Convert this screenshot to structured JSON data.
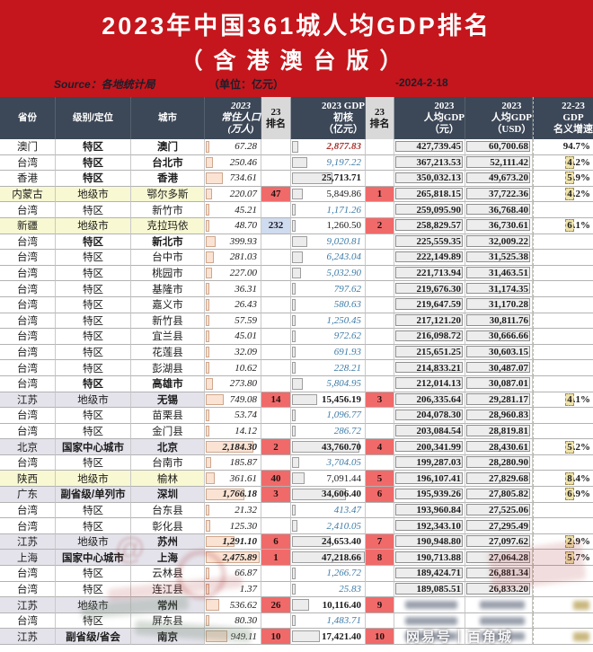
{
  "banner": {
    "title_line1": "2023年中国361城人均GDP排名",
    "title_line2": "（含港澳台版）",
    "source_label": "Source：各地统计局",
    "unit_label": "（单位：亿元）",
    "date_label": "-2024-2-18"
  },
  "watermark": {
    "text": "网易号｜百角城",
    "at_symbol": "@"
  },
  "colors": {
    "banner_red": "#c4161c",
    "header_dark": "#3c4757",
    "rank_red": "#f06a6a",
    "rank_blue": "#cfdbee",
    "row_yellow": "#f8f8d2",
    "row_gray": "#e4e3eb",
    "taiwan_blue": "#3e7ca8",
    "macau_red": "#a8332e",
    "pop_bar": "#fbe3d4",
    "gdp_bar": "#ececec",
    "pc_box": "#ededed",
    "growth_tan": "#efe3ac"
  },
  "chart_data": {
    "type": "table",
    "title": "2023年中国361城人均GDP排名（含港澳台版）",
    "columns_display": [
      "省份",
      "级别/定位",
      "城市",
      "2023\n常住人口\n(万人)",
      "23\n排名",
      "2023 GDP\n初核\n（亿元）",
      "23\n排名",
      "2023\n人均GDP\n（元）",
      "2023\n人均GDP\n（USD）",
      "22-23\nGDP\n名义增速"
    ],
    "pop_max": 2475.89,
    "gdp_max": 47218.66,
    "rows": [
      {
        "province": "澳门",
        "level": "特区",
        "city": "澳门",
        "pop": "67.28",
        "pop_rank": "",
        "pop_rank_style": "",
        "gdp": "2,877.83",
        "gdp_style": "red",
        "gdp_rank": "",
        "pc_cny": "427,739.45",
        "pc_usd": "60,700.68",
        "growth": "94.7%",
        "growth_highlight": false,
        "bg": "white",
        "level_bold": true,
        "city_bold": true,
        "blur": false
      },
      {
        "province": "台湾",
        "level": "特区",
        "city": "台北市",
        "pop": "250.46",
        "pop_rank": "",
        "pop_rank_style": "",
        "gdp": "9,197.22",
        "gdp_style": "blue",
        "gdp_rank": "",
        "pc_cny": "367,213.53",
        "pc_usd": "52,111.42",
        "growth": "4.2%",
        "growth_highlight": true,
        "bg": "white",
        "level_bold": true,
        "city_bold": true,
        "blur": false
      },
      {
        "province": "香港",
        "level": "特区",
        "city": "香港",
        "pop": "734.61",
        "pop_rank": "",
        "pop_rank_style": "",
        "gdp": "25,713.71",
        "gdp_style": "black",
        "gdp_rank": "",
        "pc_cny": "350,032.13",
        "pc_usd": "49,673.20",
        "growth": "5.9%",
        "growth_highlight": true,
        "bg": "white",
        "level_bold": true,
        "city_bold": true,
        "blur": false
      },
      {
        "province": "内蒙古",
        "level": "地级市",
        "city": "鄂尔多斯",
        "pop": "220.07",
        "pop_rank": "47",
        "pop_rank_style": "red",
        "gdp": "5,849.86",
        "gdp_style": "black",
        "gdp_rank": "1",
        "pc_cny": "265,818.15",
        "pc_usd": "37,722.36",
        "growth": "4.2%",
        "growth_highlight": true,
        "bg": "yellow",
        "level_bold": false,
        "city_bold": false,
        "blur": false
      },
      {
        "province": "台湾",
        "level": "特区",
        "city": "新竹市",
        "pop": "45.21",
        "pop_rank": "",
        "pop_rank_style": "",
        "gdp": "1,171.26",
        "gdp_style": "blue",
        "gdp_rank": "",
        "pc_cny": "259,095.90",
        "pc_usd": "36,768.40",
        "growth": "",
        "growth_highlight": false,
        "bg": "white",
        "level_bold": false,
        "city_bold": false,
        "blur": false
      },
      {
        "province": "新疆",
        "level": "地级市",
        "city": "克拉玛依",
        "pop": "48.70",
        "pop_rank": "232",
        "pop_rank_style": "blue",
        "gdp": "1,260.50",
        "gdp_style": "black",
        "gdp_rank": "2",
        "pc_cny": "258,829.57",
        "pc_usd": "36,730.61",
        "growth": "6.1%",
        "growth_highlight": true,
        "bg": "yellow",
        "level_bold": false,
        "city_bold": false,
        "blur": false
      },
      {
        "province": "台湾",
        "level": "特区",
        "city": "新北市",
        "pop": "399.93",
        "pop_rank": "",
        "pop_rank_style": "",
        "gdp": "9,020.81",
        "gdp_style": "blue",
        "gdp_rank": "",
        "pc_cny": "225,559.35",
        "pc_usd": "32,009.22",
        "growth": "",
        "growth_highlight": false,
        "bg": "white",
        "level_bold": true,
        "city_bold": true,
        "blur": false
      },
      {
        "province": "台湾",
        "level": "特区",
        "city": "台中市",
        "pop": "281.03",
        "pop_rank": "",
        "pop_rank_style": "",
        "gdp": "6,243.04",
        "gdp_style": "blue",
        "gdp_rank": "",
        "pc_cny": "222,149.89",
        "pc_usd": "31,525.38",
        "growth": "",
        "growth_highlight": false,
        "bg": "white",
        "level_bold": false,
        "city_bold": false,
        "blur": false
      },
      {
        "province": "台湾",
        "level": "特区",
        "city": "桃园市",
        "pop": "227.00",
        "pop_rank": "",
        "pop_rank_style": "",
        "gdp": "5,032.90",
        "gdp_style": "blue",
        "gdp_rank": "",
        "pc_cny": "221,713.94",
        "pc_usd": "31,463.51",
        "growth": "",
        "growth_highlight": false,
        "bg": "white",
        "level_bold": false,
        "city_bold": false,
        "blur": false
      },
      {
        "province": "台湾",
        "level": "特区",
        "city": "基隆市",
        "pop": "36.31",
        "pop_rank": "",
        "pop_rank_style": "",
        "gdp": "797.62",
        "gdp_style": "blue",
        "gdp_rank": "",
        "pc_cny": "219,676.30",
        "pc_usd": "31,174.35",
        "growth": "",
        "growth_highlight": false,
        "bg": "white",
        "level_bold": false,
        "city_bold": false,
        "blur": false
      },
      {
        "province": "台湾",
        "level": "特区",
        "city": "嘉义市",
        "pop": "26.43",
        "pop_rank": "",
        "pop_rank_style": "",
        "gdp": "580.63",
        "gdp_style": "blue",
        "gdp_rank": "",
        "pc_cny": "219,647.59",
        "pc_usd": "31,170.28",
        "growth": "",
        "growth_highlight": false,
        "bg": "white",
        "level_bold": false,
        "city_bold": false,
        "blur": false
      },
      {
        "province": "台湾",
        "level": "特区",
        "city": "新竹县",
        "pop": "57.59",
        "pop_rank": "",
        "pop_rank_style": "",
        "gdp": "1,250.45",
        "gdp_style": "blue",
        "gdp_rank": "",
        "pc_cny": "217,121.20",
        "pc_usd": "30,811.76",
        "growth": "",
        "growth_highlight": false,
        "bg": "white",
        "level_bold": false,
        "city_bold": false,
        "blur": false
      },
      {
        "province": "台湾",
        "level": "特区",
        "city": "宜兰县",
        "pop": "45.01",
        "pop_rank": "",
        "pop_rank_style": "",
        "gdp": "972.62",
        "gdp_style": "blue",
        "gdp_rank": "",
        "pc_cny": "216,098.72",
        "pc_usd": "30,666.66",
        "growth": "",
        "growth_highlight": false,
        "bg": "white",
        "level_bold": false,
        "city_bold": false,
        "blur": false
      },
      {
        "province": "台湾",
        "level": "特区",
        "city": "花莲县",
        "pop": "32.09",
        "pop_rank": "",
        "pop_rank_style": "",
        "gdp": "691.93",
        "gdp_style": "blue",
        "gdp_rank": "",
        "pc_cny": "215,651.25",
        "pc_usd": "30,603.15",
        "growth": "",
        "growth_highlight": false,
        "bg": "white",
        "level_bold": false,
        "city_bold": false,
        "blur": false
      },
      {
        "province": "台湾",
        "level": "特区",
        "city": "彭湖县",
        "pop": "10.62",
        "pop_rank": "",
        "pop_rank_style": "",
        "gdp": "228.21",
        "gdp_style": "blue",
        "gdp_rank": "",
        "pc_cny": "214,833.21",
        "pc_usd": "30,487.07",
        "growth": "",
        "growth_highlight": false,
        "bg": "white",
        "level_bold": false,
        "city_bold": false,
        "blur": false
      },
      {
        "province": "台湾",
        "level": "特区",
        "city": "高雄市",
        "pop": "273.80",
        "pop_rank": "",
        "pop_rank_style": "",
        "gdp": "5,804.95",
        "gdp_style": "blue",
        "gdp_rank": "",
        "pc_cny": "212,014.13",
        "pc_usd": "30,087.01",
        "growth": "",
        "growth_highlight": false,
        "bg": "white",
        "level_bold": true,
        "city_bold": true,
        "blur": false
      },
      {
        "province": "江苏",
        "level": "地级市",
        "city": "无锡",
        "pop": "749.08",
        "pop_rank": "14",
        "pop_rank_style": "red",
        "gdp": "15,456.19",
        "gdp_style": "black",
        "gdp_rank": "3",
        "pc_cny": "206,335.64",
        "pc_usd": "29,281.17",
        "growth": "4.1%",
        "growth_highlight": true,
        "bg": "gray",
        "level_bold": false,
        "city_bold": true,
        "blur": false
      },
      {
        "province": "台湾",
        "level": "特区",
        "city": "苗栗县",
        "pop": "53.74",
        "pop_rank": "",
        "pop_rank_style": "",
        "gdp": "1,096.77",
        "gdp_style": "blue",
        "gdp_rank": "",
        "pc_cny": "204,078.30",
        "pc_usd": "28,960.83",
        "growth": "",
        "growth_highlight": false,
        "bg": "white",
        "level_bold": false,
        "city_bold": false,
        "blur": false
      },
      {
        "province": "台湾",
        "level": "特区",
        "city": "金门县",
        "pop": "14.12",
        "pop_rank": "",
        "pop_rank_style": "",
        "gdp": "286.72",
        "gdp_style": "blue",
        "gdp_rank": "",
        "pc_cny": "203,084.54",
        "pc_usd": "28,819.81",
        "growth": "",
        "growth_highlight": false,
        "bg": "white",
        "level_bold": false,
        "city_bold": false,
        "blur": false
      },
      {
        "province": "北京",
        "level": "国家中心城市",
        "city": "北京",
        "pop": "2,184.30",
        "pop_rank": "2",
        "pop_rank_style": "red",
        "gdp": "43,760.70",
        "gdp_style": "black",
        "gdp_rank": "4",
        "pc_cny": "200,341.99",
        "pc_usd": "28,430.61",
        "growth": "5.2%",
        "growth_highlight": true,
        "bg": "gray",
        "level_bold": true,
        "city_bold": true,
        "blur": false
      },
      {
        "province": "台湾",
        "level": "特区",
        "city": "台南市",
        "pop": "185.87",
        "pop_rank": "",
        "pop_rank_style": "",
        "gdp": "3,704.05",
        "gdp_style": "blue",
        "gdp_rank": "",
        "pc_cny": "199,287.03",
        "pc_usd": "28,280.90",
        "growth": "",
        "growth_highlight": false,
        "bg": "white",
        "level_bold": false,
        "city_bold": false,
        "blur": false
      },
      {
        "province": "陕西",
        "level": "地级市",
        "city": "榆林",
        "pop": "361.61",
        "pop_rank": "40",
        "pop_rank_style": "red",
        "gdp": "7,091.44",
        "gdp_style": "black",
        "gdp_rank": "5",
        "pc_cny": "196,107.41",
        "pc_usd": "27,829.68",
        "growth": "8.4%",
        "growth_highlight": true,
        "bg": "yellow",
        "level_bold": false,
        "city_bold": false,
        "blur": false
      },
      {
        "province": "广东",
        "level": "副省级/单列市",
        "city": "深圳",
        "pop": "1,766.18",
        "pop_rank": "3",
        "pop_rank_style": "red",
        "gdp": "34,606.40",
        "gdp_style": "black",
        "gdp_rank": "6",
        "pc_cny": "195,939.26",
        "pc_usd": "27,805.82",
        "growth": "6.9%",
        "growth_highlight": true,
        "bg": "gray",
        "level_bold": true,
        "city_bold": true,
        "blur": false
      },
      {
        "province": "台湾",
        "level": "特区",
        "city": "台东县",
        "pop": "21.32",
        "pop_rank": "",
        "pop_rank_style": "",
        "gdp": "413.47",
        "gdp_style": "blue",
        "gdp_rank": "",
        "pc_cny": "193,960.84",
        "pc_usd": "27,525.06",
        "growth": "",
        "growth_highlight": false,
        "bg": "white",
        "level_bold": false,
        "city_bold": false,
        "blur": false
      },
      {
        "province": "台湾",
        "level": "特区",
        "city": "彰化县",
        "pop": "125.30",
        "pop_rank": "",
        "pop_rank_style": "",
        "gdp": "2,410.05",
        "gdp_style": "blue",
        "gdp_rank": "",
        "pc_cny": "192,343.10",
        "pc_usd": "27,295.49",
        "growth": "",
        "growth_highlight": false,
        "bg": "white",
        "level_bold": false,
        "city_bold": false,
        "blur": false
      },
      {
        "province": "江苏",
        "level": "地级市",
        "city": "苏州",
        "pop": "1,291.10",
        "pop_rank": "6",
        "pop_rank_style": "red",
        "gdp": "24,653.40",
        "gdp_style": "black",
        "gdp_rank": "7",
        "pc_cny": "190,948.80",
        "pc_usd": "27,097.62",
        "growth": "2.9%",
        "growth_highlight": true,
        "bg": "gray",
        "level_bold": false,
        "city_bold": true,
        "blur": false
      },
      {
        "province": "上海",
        "level": "国家中心城市",
        "city": "上海",
        "pop": "2,475.89",
        "pop_rank": "1",
        "pop_rank_style": "red",
        "gdp": "47,218.66",
        "gdp_style": "black",
        "gdp_rank": "8",
        "pc_cny": "190,713.88",
        "pc_usd": "27,064.28",
        "growth": "5.7%",
        "growth_highlight": true,
        "bg": "gray",
        "level_bold": true,
        "city_bold": true,
        "blur": false
      },
      {
        "province": "台湾",
        "level": "特区",
        "city": "云林县",
        "pop": "66.87",
        "pop_rank": "",
        "pop_rank_style": "",
        "gdp": "1,266.72",
        "gdp_style": "blue",
        "gdp_rank": "",
        "pc_cny": "189,424.71",
        "pc_usd": "26,881.34",
        "growth": "",
        "growth_highlight": false,
        "bg": "white",
        "level_bold": false,
        "city_bold": false,
        "blur": false
      },
      {
        "province": "台湾",
        "level": "特区",
        "city": "连江县",
        "pop": "1.37",
        "pop_rank": "",
        "pop_rank_style": "",
        "gdp": "25.83",
        "gdp_style": "blue",
        "gdp_rank": "",
        "pc_cny": "189,085.51",
        "pc_usd": "26,833.20",
        "growth": "",
        "growth_highlight": false,
        "bg": "white",
        "level_bold": false,
        "city_bold": false,
        "blur": false
      },
      {
        "province": "江苏",
        "level": "地级市",
        "city": "常州",
        "pop": "536.62",
        "pop_rank": "26",
        "pop_rank_style": "red",
        "gdp": "10,116.40",
        "gdp_style": "black",
        "gdp_rank": "9",
        "pc_cny": "",
        "pc_usd": "",
        "growth": "",
        "growth_highlight": false,
        "bg": "gray",
        "level_bold": false,
        "city_bold": true,
        "blur": true
      },
      {
        "province": "台湾",
        "level": "特区",
        "city": "屏东县",
        "pop": "80.30",
        "pop_rank": "",
        "pop_rank_style": "",
        "gdp": "1,483.71",
        "gdp_style": "blue",
        "gdp_rank": "",
        "pc_cny": "",
        "pc_usd": "",
        "growth": "",
        "growth_highlight": false,
        "bg": "white",
        "level_bold": false,
        "city_bold": false,
        "blur": true
      },
      {
        "province": "江苏",
        "level": "副省级/省会",
        "city": "南京",
        "pop": "949.11",
        "pop_rank": "10",
        "pop_rank_style": "red",
        "gdp": "17,421.40",
        "gdp_style": "black",
        "gdp_rank": "10",
        "pc_cny": "",
        "pc_usd": "",
        "growth": "",
        "growth_highlight": false,
        "bg": "gray",
        "level_bold": true,
        "city_bold": true,
        "blur": true
      }
    ]
  }
}
